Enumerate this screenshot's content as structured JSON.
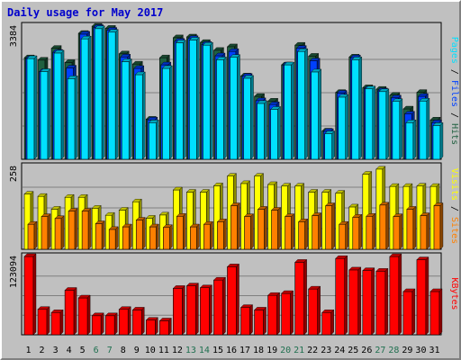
{
  "title": "Daily usage for May 2017",
  "colors": {
    "background": "#c0c0c0",
    "title": "#0000cc",
    "pages": "#00e0ff",
    "files": "#0040ff",
    "hits": "#206040",
    "visits": "#ffff00",
    "sites": "#ff8000",
    "kbytes": "#ff0000",
    "weekend_label": "#207050",
    "weekday_label": "#000000",
    "separator": "#000000"
  },
  "chart_data": [
    {
      "type": "bar",
      "panel": "top",
      "ymax_label": "3384",
      "ylim": [
        0,
        3384
      ],
      "right_labels": [
        "Pages",
        "Files",
        "Hits"
      ],
      "categories": [
        "1",
        "2",
        "3",
        "4",
        "5",
        "6",
        "7",
        "8",
        "9",
        "10",
        "11",
        "12",
        "13",
        "14",
        "15",
        "16",
        "17",
        "18",
        "19",
        "20",
        "21",
        "22",
        "23",
        "24",
        "25",
        "26",
        "27",
        "28",
        "29",
        "30",
        "31"
      ],
      "series": [
        {
          "name": "Hits",
          "values": [
            2580,
            2520,
            2820,
            2460,
            3200,
            3380,
            3330,
            2680,
            2420,
            1020,
            2580,
            3090,
            3110,
            2970,
            2770,
            2860,
            2120,
            1600,
            1480,
            2400,
            2900,
            2620,
            720,
            1700,
            2600,
            1820,
            1780,
            1630,
            1280,
            1700,
            1000
          ]
        },
        {
          "name": "Files",
          "values": [
            2560,
            2230,
            2720,
            2320,
            3180,
            3350,
            3280,
            2600,
            2310,
            1000,
            2400,
            3000,
            3070,
            2920,
            2630,
            2740,
            2110,
            1490,
            1390,
            2400,
            2820,
            2500,
            710,
            1680,
            2580,
            1790,
            1740,
            1560,
            1150,
            1600,
            930
          ]
        },
        {
          "name": "Pages",
          "values": [
            2560,
            2230,
            2700,
            2050,
            3060,
            3320,
            3230,
            2480,
            2150,
            930,
            2310,
            2960,
            3030,
            2900,
            2530,
            2590,
            2060,
            1420,
            1270,
            2400,
            2740,
            2220,
            650,
            1580,
            2530,
            1790,
            1720,
            1470,
            930,
            1480,
            860
          ]
        }
      ]
    },
    {
      "type": "bar",
      "panel": "middle",
      "ymax_label": "258",
      "ylim": [
        0,
        258
      ],
      "right_labels": [
        "Visits",
        "Sites"
      ],
      "categories": [
        "1",
        "2",
        "3",
        "4",
        "5",
        "6",
        "7",
        "8",
        "9",
        "10",
        "11",
        "12",
        "13",
        "14",
        "15",
        "16",
        "17",
        "18",
        "19",
        "20",
        "21",
        "22",
        "23",
        "24",
        "25",
        "26",
        "27",
        "28",
        "29",
        "30",
        "31"
      ],
      "series": [
        {
          "name": "Visits",
          "values": [
            172,
            165,
            125,
            162,
            162,
            128,
            106,
            122,
            148,
            97,
            107,
            185,
            178,
            178,
            198,
            228,
            205,
            228,
            202,
            197,
            197,
            178,
            178,
            175,
            132,
            234,
            250,
            196,
            196,
            197,
            196
          ]
        },
        {
          "name": "Sites",
          "values": [
            78,
            102,
            96,
            119,
            119,
            80,
            62,
            70,
            91,
            70,
            68,
            103,
            70,
            78,
            86,
            136,
            102,
            125,
            122,
            102,
            86,
            105,
            136,
            78,
            100,
            103,
            138,
            102,
            125,
            105,
            136
          ]
        }
      ]
    },
    {
      "type": "bar",
      "panel": "bottom",
      "ymax_label": "123094",
      "ylim": [
        0,
        123094
      ],
      "right_labels": [
        "KBytes"
      ],
      "categories": [
        "1",
        "2",
        "3",
        "4",
        "5",
        "6",
        "7",
        "8",
        "9",
        "10",
        "11",
        "12",
        "13",
        "14",
        "15",
        "16",
        "17",
        "18",
        "19",
        "20",
        "21",
        "22",
        "23",
        "24",
        "25",
        "26",
        "27",
        "28",
        "29",
        "30",
        "31"
      ],
      "series": [
        {
          "name": "KBytes",
          "values": [
            123094,
            40000,
            35000,
            70000,
            58000,
            30000,
            30000,
            40000,
            39000,
            23000,
            22000,
            73000,
            77000,
            74000,
            86000,
            107000,
            43000,
            39000,
            62000,
            65000,
            114000,
            72000,
            35000,
            120000,
            102000,
            101000,
            100000,
            123000,
            68000,
            118000,
            68000
          ]
        }
      ]
    }
  ],
  "x_axis": {
    "labels": [
      "1",
      "2",
      "3",
      "4",
      "5",
      "6",
      "7",
      "8",
      "9",
      "10",
      "11",
      "12",
      "13",
      "14",
      "15",
      "16",
      "17",
      "18",
      "19",
      "20",
      "21",
      "22",
      "23",
      "24",
      "25",
      "26",
      "27",
      "28",
      "29",
      "30",
      "31"
    ],
    "weekend_days": [
      "6",
      "7",
      "13",
      "14",
      "20",
      "21",
      "27",
      "28"
    ]
  }
}
